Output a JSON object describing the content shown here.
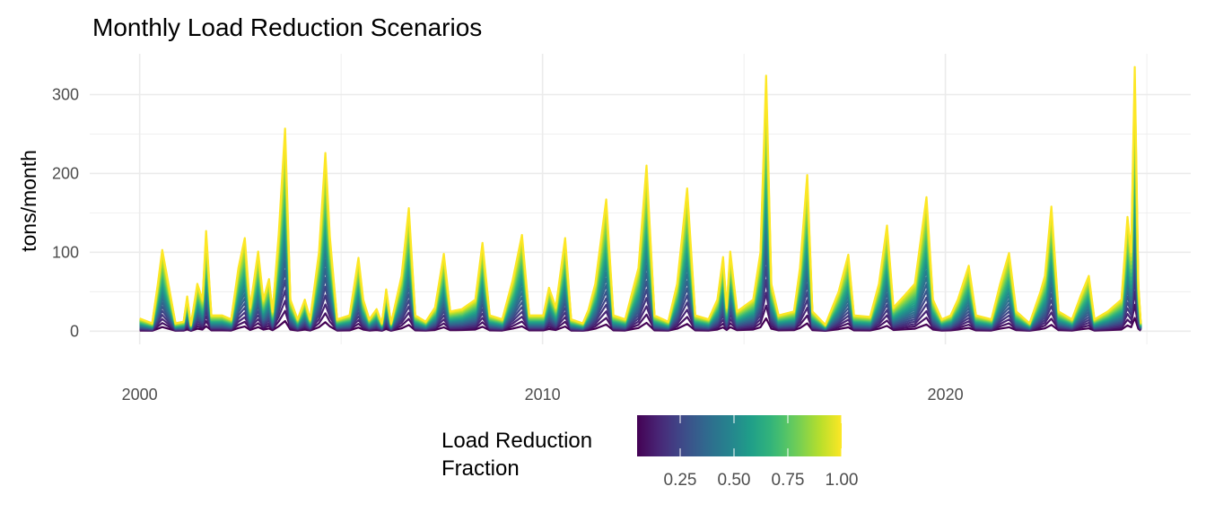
{
  "chart_data": {
    "type": "line",
    "title": "Monthly Load Reduction Scenarios",
    "xlabel": "",
    "ylabel": "tons/month",
    "x_ticks": [
      "2000",
      "2010",
      "2020"
    ],
    "y_ticks": [
      "0",
      "100",
      "200",
      "300"
    ],
    "xlim": [
      1998.76,
      2026.09
    ],
    "ylim": [
      -16.75,
      351.75
    ],
    "grid": true,
    "legend": {
      "title_lines": [
        "Load Reduction",
        "Fraction"
      ],
      "placement": "bottom",
      "type": "colorbar",
      "range": [
        0.05,
        1.0
      ],
      "tick_labels": [
        "0.25",
        "0.50",
        "0.75",
        "1.00"
      ],
      "tick_values": [
        0.25,
        0.5,
        0.75,
        1.0
      ],
      "colormap": "viridis"
    },
    "fractions": [
      0.05,
      0.1,
      0.15,
      0.2,
      0.25,
      0.3,
      0.35,
      0.4,
      0.45,
      0.5,
      0.55,
      0.6,
      0.65,
      0.7,
      0.75,
      0.8,
      0.85,
      0.9,
      0.95,
      1.0
    ],
    "full_load_series": [
      [
        2000.0,
        16
      ],
      [
        2000.31,
        10
      ],
      [
        2000.45,
        60
      ],
      [
        2000.56,
        103
      ],
      [
        2000.67,
        72
      ],
      [
        2000.8,
        35
      ],
      [
        2000.89,
        10
      ],
      [
        2001.09,
        12
      ],
      [
        2001.18,
        44
      ],
      [
        2001.27,
        8
      ],
      [
        2001.43,
        60
      ],
      [
        2001.56,
        40
      ],
      [
        2001.65,
        127
      ],
      [
        2001.78,
        20
      ],
      [
        2002.05,
        20
      ],
      [
        2002.27,
        15
      ],
      [
        2002.45,
        80
      ],
      [
        2002.61,
        118
      ],
      [
        2002.74,
        30
      ],
      [
        2002.94,
        101
      ],
      [
        2003.07,
        40
      ],
      [
        2003.21,
        66
      ],
      [
        2003.3,
        25
      ],
      [
        2003.45,
        123
      ],
      [
        2003.61,
        257
      ],
      [
        2003.74,
        40
      ],
      [
        2003.92,
        15
      ],
      [
        2004.1,
        40
      ],
      [
        2004.23,
        15
      ],
      [
        2004.45,
        100
      ],
      [
        2004.61,
        226
      ],
      [
        2004.72,
        120
      ],
      [
        2004.9,
        15
      ],
      [
        2005.21,
        20
      ],
      [
        2005.43,
        93
      ],
      [
        2005.55,
        40
      ],
      [
        2005.7,
        15
      ],
      [
        2005.88,
        28
      ],
      [
        2006.01,
        10
      ],
      [
        2006.12,
        53
      ],
      [
        2006.24,
        10
      ],
      [
        2006.5,
        70
      ],
      [
        2006.68,
        156
      ],
      [
        2006.84,
        20
      ],
      [
        2007.1,
        12
      ],
      [
        2007.33,
        30
      ],
      [
        2007.55,
        98
      ],
      [
        2007.71,
        25
      ],
      [
        2008.0,
        28
      ],
      [
        2008.33,
        40
      ],
      [
        2008.51,
        112
      ],
      [
        2008.69,
        20
      ],
      [
        2009.0,
        15
      ],
      [
        2009.26,
        65
      ],
      [
        2009.49,
        122
      ],
      [
        2009.67,
        20
      ],
      [
        2010.02,
        20
      ],
      [
        2010.16,
        55
      ],
      [
        2010.33,
        30
      ],
      [
        2010.56,
        118
      ],
      [
        2010.71,
        15
      ],
      [
        2011.0,
        10
      ],
      [
        2011.14,
        27
      ],
      [
        2011.31,
        60
      ],
      [
        2011.58,
        167
      ],
      [
        2011.76,
        20
      ],
      [
        2012.05,
        15
      ],
      [
        2012.38,
        80
      ],
      [
        2012.58,
        210
      ],
      [
        2012.78,
        20
      ],
      [
        2013.12,
        12
      ],
      [
        2013.34,
        60
      ],
      [
        2013.59,
        181
      ],
      [
        2013.79,
        20
      ],
      [
        2014.12,
        15
      ],
      [
        2014.34,
        40
      ],
      [
        2014.48,
        94
      ],
      [
        2014.57,
        30
      ],
      [
        2014.66,
        101
      ],
      [
        2014.83,
        25
      ],
      [
        2015.23,
        40
      ],
      [
        2015.41,
        100
      ],
      [
        2015.55,
        324
      ],
      [
        2015.68,
        60
      ],
      [
        2015.86,
        20
      ],
      [
        2016.24,
        25
      ],
      [
        2016.39,
        80
      ],
      [
        2016.57,
        198
      ],
      [
        2016.7,
        25
      ],
      [
        2017.02,
        8
      ],
      [
        2017.35,
        50
      ],
      [
        2017.59,
        97
      ],
      [
        2017.73,
        20
      ],
      [
        2018.13,
        18
      ],
      [
        2018.35,
        60
      ],
      [
        2018.55,
        134
      ],
      [
        2018.71,
        30
      ],
      [
        2018.98,
        45
      ],
      [
        2019.24,
        60
      ],
      [
        2019.53,
        170
      ],
      [
        2019.69,
        40
      ],
      [
        2019.91,
        15
      ],
      [
        2020.13,
        20
      ],
      [
        2020.31,
        40
      ],
      [
        2020.58,
        83
      ],
      [
        2020.76,
        20
      ],
      [
        2021.14,
        15
      ],
      [
        2021.36,
        60
      ],
      [
        2021.58,
        99
      ],
      [
        2021.76,
        25
      ],
      [
        2022.09,
        10
      ],
      [
        2022.36,
        50
      ],
      [
        2022.47,
        70
      ],
      [
        2022.63,
        158
      ],
      [
        2022.81,
        25
      ],
      [
        2023.14,
        15
      ],
      [
        2023.36,
        45
      ],
      [
        2023.56,
        70
      ],
      [
        2023.7,
        15
      ],
      [
        2024.03,
        25
      ],
      [
        2024.37,
        40
      ],
      [
        2024.52,
        145
      ],
      [
        2024.61,
        100
      ],
      [
        2024.7,
        335
      ],
      [
        2024.79,
        60
      ],
      [
        2024.85,
        10
      ]
    ]
  }
}
